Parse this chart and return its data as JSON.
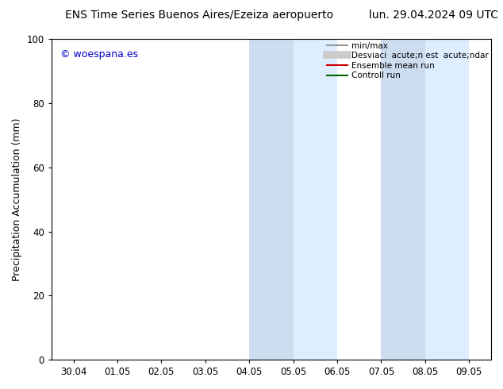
{
  "title_left": "ENS Time Series Buenos Aires/Ezeiza aeropuerto",
  "title_right": "lun. 29.04.2024 09 UTC",
  "ylabel": "Precipitation Accumulation (mm)",
  "ylim": [
    0,
    100
  ],
  "yticks": [
    0,
    20,
    40,
    60,
    80,
    100
  ],
  "xtick_labels": [
    "30.04",
    "01.05",
    "02.05",
    "03.05",
    "04.05",
    "05.05",
    "06.05",
    "07.05",
    "08.05",
    "09.05"
  ],
  "xlim_start": -0.5,
  "xlim_end": 9.5,
  "shaded_bands": [
    {
      "x_start": 4,
      "x_end": 6,
      "color": "#ddeeff"
    },
    {
      "x_start": 7,
      "x_end": 9,
      "color": "#ddeeff"
    }
  ],
  "shaded_inner_bands": [
    {
      "x_start": 4,
      "x_end": 5,
      "color": "#ccddf0"
    },
    {
      "x_start": 7,
      "x_end": 8,
      "color": "#ccddf0"
    }
  ],
  "watermark_text": "© woespana.es",
  "watermark_color": "#0000cc",
  "bg_color": "#ffffff",
  "plot_bg_color": "#ffffff",
  "title_fontsize": 10,
  "axis_fontsize": 9,
  "tick_fontsize": 8.5,
  "legend_fontsize": 7.5,
  "legend_labels": [
    "min/max",
    "Desviaci  acute;n est  acute;ndar",
    "Ensemble mean run",
    "Controll run"
  ],
  "legend_colors": [
    "#999999",
    "#cccccc",
    "#cc0000",
    "#006600"
  ],
  "legend_linewidths": [
    1.5,
    7,
    1.5,
    1.5
  ]
}
